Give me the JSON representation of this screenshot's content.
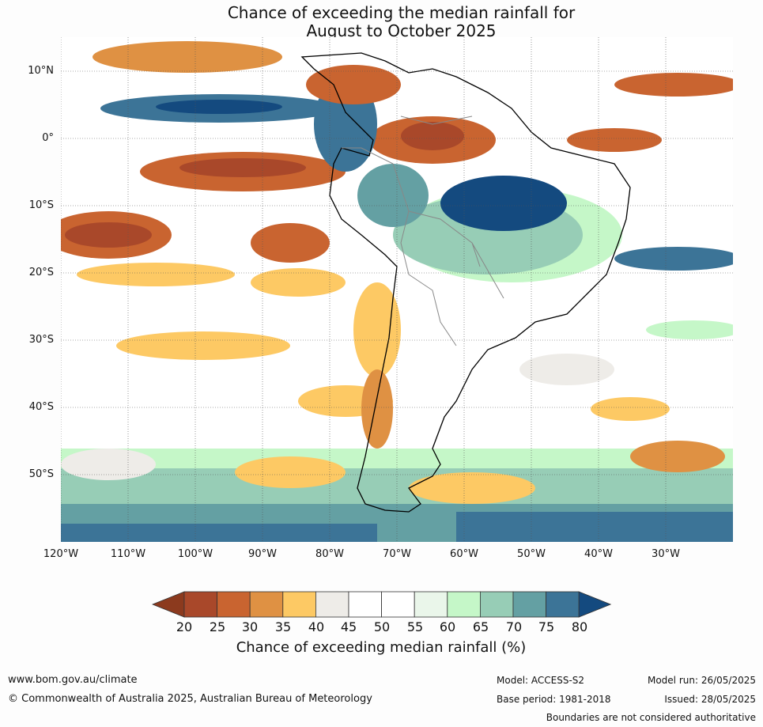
{
  "title_line1": "Chance of exceeding the median rainfall for",
  "title_line2": "August to October 2025",
  "lat_labels": [
    "10°N",
    "0°",
    "10°S",
    "20°S",
    "30°S",
    "40°S",
    "50°S"
  ],
  "lon_labels": [
    "120°W",
    "110°W",
    "100°W",
    "90°W",
    "80°W",
    "70°W",
    "60°W",
    "50°W",
    "40°W",
    "30°W"
  ],
  "colorbar": {
    "ticks": [
      "20",
      "25",
      "30",
      "35",
      "40",
      "45",
      "50",
      "55",
      "60",
      "65",
      "70",
      "75",
      "80"
    ],
    "colors": [
      "#8c3a1e",
      "#a9482a",
      "#c96430",
      "#df9143",
      "#fdc964",
      "#eeece8",
      "#ffffff",
      "#ffffff",
      "#eaf6ea",
      "#c5f7c8",
      "#97cdb6",
      "#64a0a3",
      "#3c7497",
      "#144a7f"
    ],
    "title": "Chance of exceeding median rainfall (%)"
  },
  "footer": {
    "url": "www.bom.gov.au/climate",
    "copyright": "© Commonwealth of Australia 2025, Australian Bureau of Meteorology",
    "model": "Model: ACCESS-S2",
    "base_period": "Base period: 1981-2018",
    "model_run": "Model run: 26/05/2025",
    "issued": "Issued: 28/05/2025",
    "disclaimer": "Boundaries are not considered authoritative"
  }
}
